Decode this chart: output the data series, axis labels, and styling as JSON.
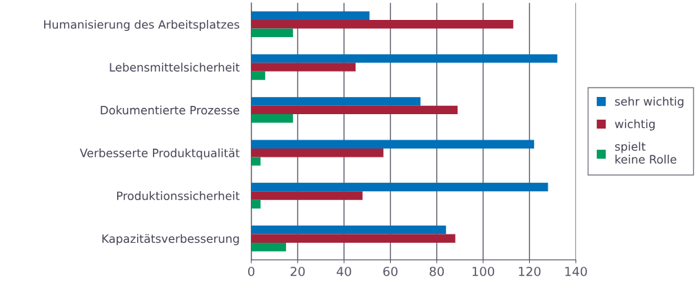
{
  "chart_data": {
    "type": "bar",
    "orientation": "horizontal",
    "categories": [
      "Humanisierung des Arbeitsplatzes",
      "Lebensmittelsicherheit",
      "Dokumentierte Prozesse",
      "Verbesserte Produktqualität",
      "Produktionssicherheit",
      "Kapazitätsverbesserung"
    ],
    "series": [
      {
        "name": "sehr wichtig",
        "color": "#0070b8",
        "values": [
          51,
          132,
          73,
          122,
          128,
          84
        ]
      },
      {
        "name": "wichtig",
        "color": "#a6223a",
        "values": [
          113,
          45,
          89,
          57,
          48,
          88
        ]
      },
      {
        "name": "spielt\nkeine Rolle",
        "color": "#009c5e",
        "values": [
          18,
          6,
          18,
          4,
          4,
          15
        ]
      }
    ],
    "xlim": [
      0,
      140
    ],
    "xticks": [
      0,
      20,
      40,
      60,
      80,
      100,
      120,
      140
    ],
    "grid": "x",
    "legend": "right"
  }
}
